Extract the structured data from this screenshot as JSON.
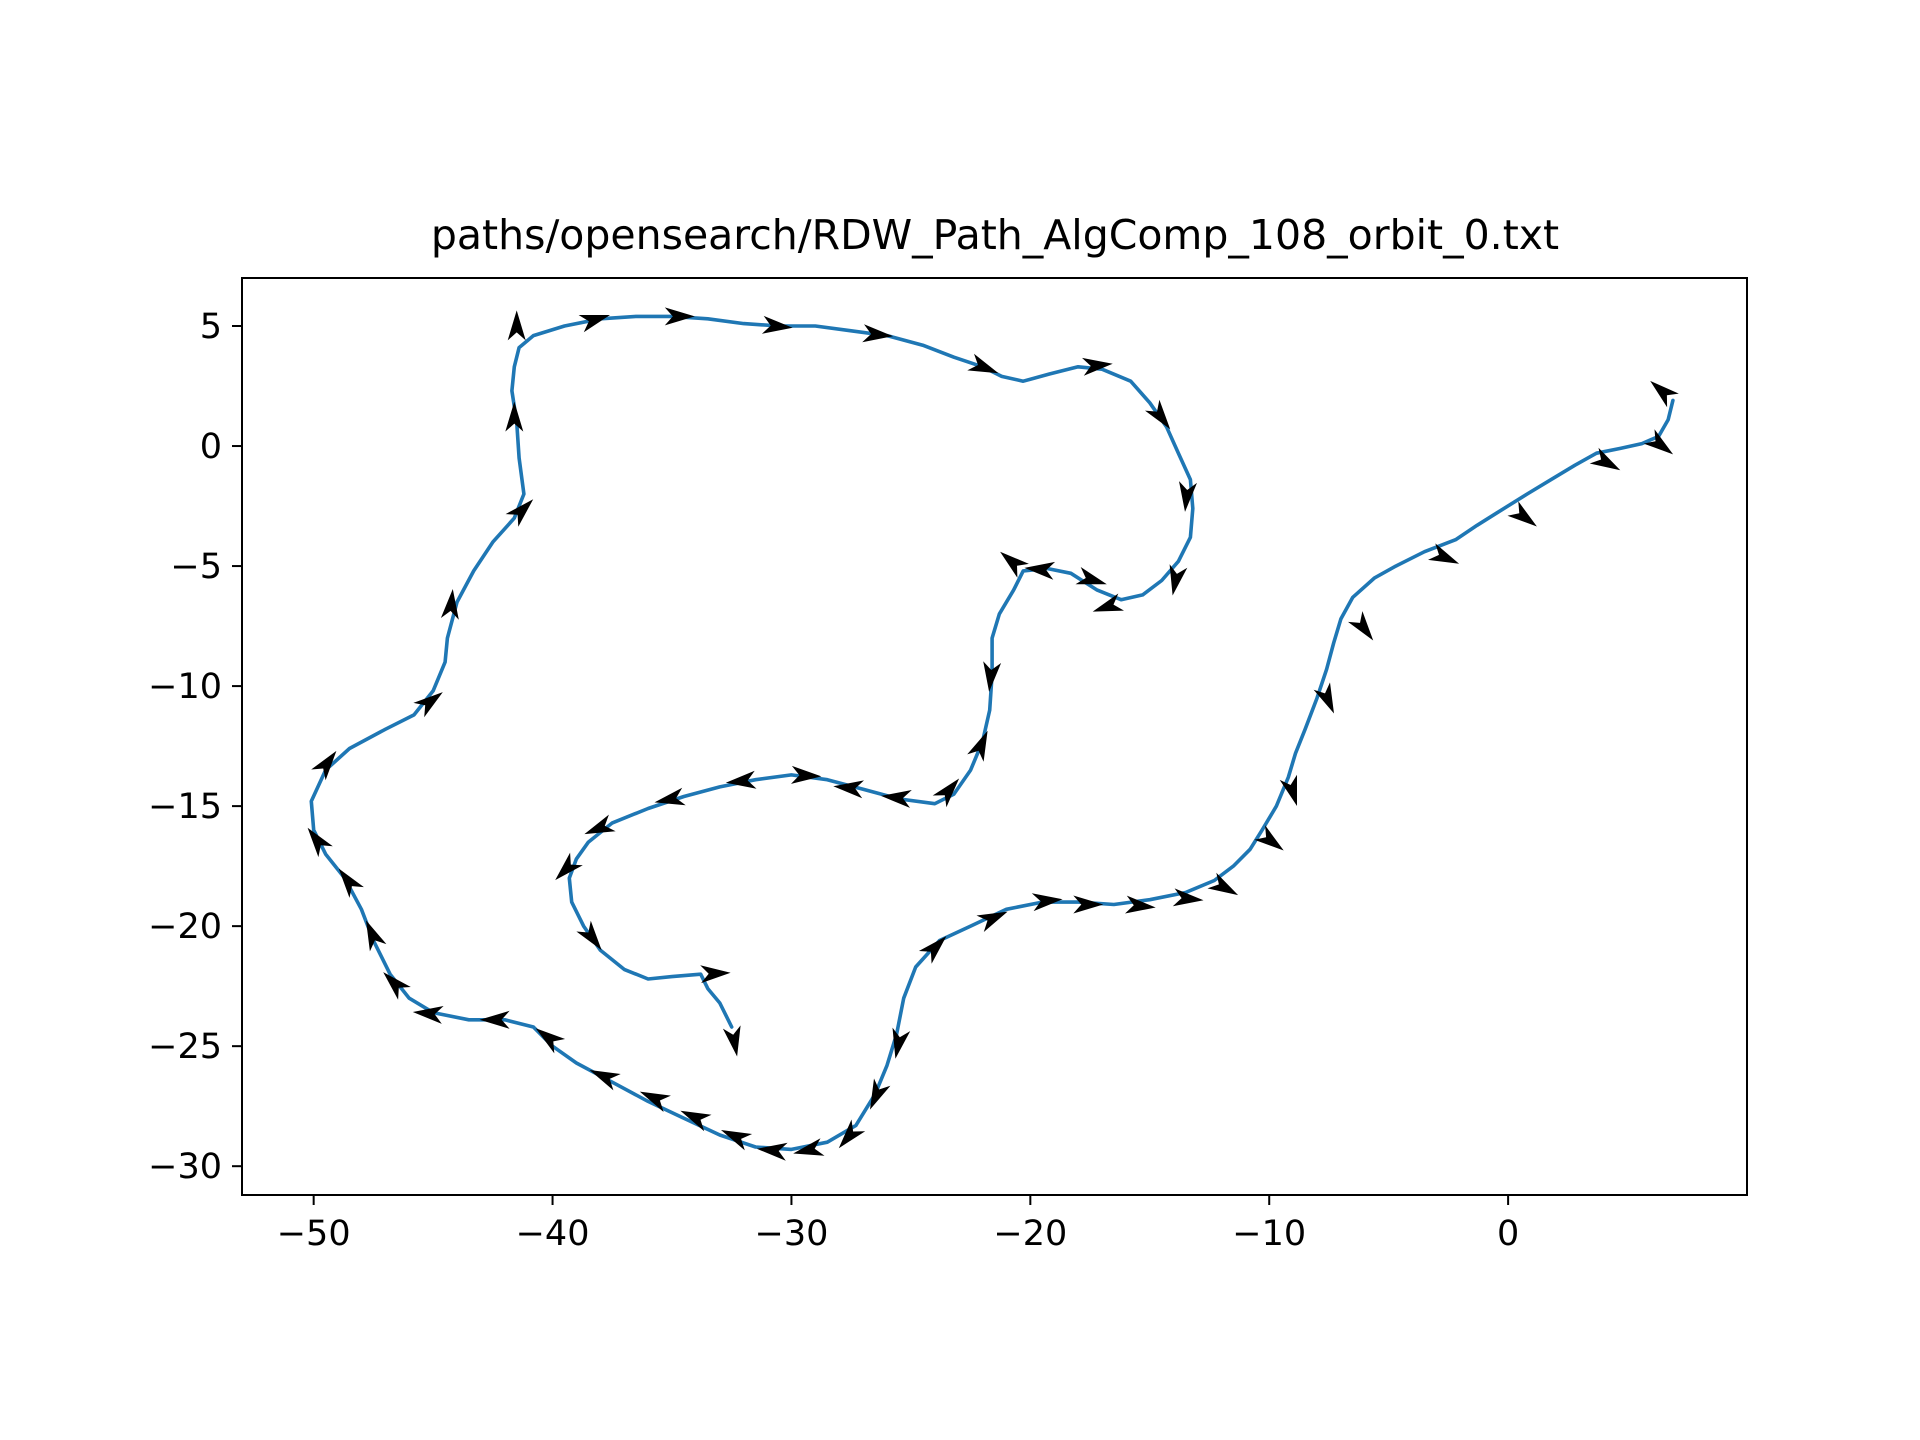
{
  "chart_data": {
    "type": "line",
    "title": "paths/opensearch/RDW_Path_AlgComp_108_orbit_0.txt",
    "xlabel": "",
    "ylabel": "",
    "xlim": [
      -53,
      10
    ],
    "ylim": [
      -31.2,
      7.0
    ],
    "xticks": [
      -50,
      -40,
      -30,
      -20,
      -10,
      0
    ],
    "yticks": [
      5,
      0,
      -5,
      -10,
      -15,
      -20,
      -25,
      -30
    ],
    "xtick_labels": [
      "−50",
      "−40",
      "−30",
      "−20",
      "−10",
      "0"
    ],
    "ytick_labels": [
      "5",
      "0",
      "−5",
      "−10",
      "−15",
      "−20",
      "−25",
      "−30"
    ],
    "grid": false,
    "colors": {
      "line": "#1f77b4",
      "arrow": "#000000"
    },
    "series": [
      {
        "points": [
          [
            -32.5,
            -24.2
          ],
          [
            -33,
            -23.2
          ],
          [
            -33.5,
            -22.6
          ],
          [
            -33.8,
            -22.0
          ],
          [
            -35,
            -22.1
          ],
          [
            -36,
            -22.2
          ],
          [
            -37,
            -21.8
          ],
          [
            -38,
            -21.0
          ],
          [
            -38.7,
            -20.0
          ],
          [
            -39.2,
            -19.0
          ],
          [
            -39.3,
            -18.0
          ],
          [
            -39.0,
            -17.2
          ],
          [
            -38.5,
            -16.5
          ],
          [
            -37.5,
            -15.7
          ],
          [
            -36,
            -15.1
          ],
          [
            -34.5,
            -14.6
          ],
          [
            -33,
            -14.2
          ],
          [
            -31.5,
            -13.9
          ],
          [
            -30,
            -13.7
          ],
          [
            -28.5,
            -13.9
          ],
          [
            -27,
            -14.3
          ],
          [
            -25.5,
            -14.7
          ],
          [
            -24,
            -14.9
          ],
          [
            -23.2,
            -14.5
          ],
          [
            -22.5,
            -13.5
          ],
          [
            -22.0,
            -12.3
          ],
          [
            -21.7,
            -11.0
          ],
          [
            -21.6,
            -9.5
          ],
          [
            -21.6,
            -8.0
          ],
          [
            -21.3,
            -7.0
          ],
          [
            -20.7,
            -6.0
          ],
          [
            -20.3,
            -5.2
          ],
          [
            -19.3,
            -5.1
          ],
          [
            -18.3,
            -5.3
          ],
          [
            -17.2,
            -6.0
          ],
          [
            -16.2,
            -6.4
          ],
          [
            -15.3,
            -6.2
          ],
          [
            -14.5,
            -5.6
          ],
          [
            -13.8,
            -4.8
          ],
          [
            -13.3,
            -3.8
          ],
          [
            -13.2,
            -2.6
          ],
          [
            -13.3,
            -1.4
          ],
          [
            -13.8,
            -0.3
          ],
          [
            -14.3,
            0.8
          ],
          [
            -15.0,
            1.8
          ],
          [
            -15.8,
            2.7
          ],
          [
            -17,
            3.2
          ],
          [
            -18,
            3.3
          ],
          [
            -19.2,
            3.0
          ],
          [
            -20.3,
            2.7
          ],
          [
            -21.2,
            2.9
          ],
          [
            -22,
            3.3
          ],
          [
            -23.2,
            3.7
          ],
          [
            -24.5,
            4.2
          ],
          [
            -26,
            4.6
          ],
          [
            -27.5,
            4.8
          ],
          [
            -29,
            5.0
          ],
          [
            -30.5,
            5.0
          ],
          [
            -32,
            5.1
          ],
          [
            -33.5,
            5.3
          ],
          [
            -35,
            5.4
          ],
          [
            -36.5,
            5.4
          ],
          [
            -38,
            5.3
          ],
          [
            -39.5,
            5.0
          ],
          [
            -40.8,
            4.6
          ],
          [
            -41.4,
            4.1
          ],
          [
            -41.6,
            3.3
          ],
          [
            -41.7,
            2.3
          ],
          [
            -41.5,
            1.0
          ],
          [
            -41.4,
            -0.5
          ],
          [
            -41.2,
            -2.0
          ],
          [
            -41.6,
            -3.0
          ],
          [
            -42.5,
            -4.0
          ],
          [
            -43.3,
            -5.2
          ],
          [
            -44.0,
            -6.5
          ],
          [
            -44.4,
            -8.0
          ],
          [
            -44.5,
            -9.0
          ],
          [
            -45,
            -10.2
          ],
          [
            -45.8,
            -11.2
          ],
          [
            -47,
            -11.8
          ],
          [
            -48.5,
            -12.6
          ],
          [
            -49.5,
            -13.5
          ],
          [
            -50.1,
            -14.8
          ],
          [
            -50.0,
            -16.0
          ],
          [
            -49.5,
            -17.0
          ],
          [
            -48.7,
            -18.0
          ],
          [
            -48,
            -19.3
          ],
          [
            -47.5,
            -20.6
          ],
          [
            -46.8,
            -22.0
          ],
          [
            -46,
            -23
          ],
          [
            -45,
            -23.6
          ],
          [
            -43.5,
            -23.9
          ],
          [
            -42,
            -23.9
          ],
          [
            -40.8,
            -24.2
          ],
          [
            -40,
            -25.0
          ],
          [
            -39,
            -25.7
          ],
          [
            -37.5,
            -26.5
          ],
          [
            -36,
            -27.3
          ],
          [
            -34.5,
            -28.0
          ],
          [
            -33,
            -28.7
          ],
          [
            -31.5,
            -29.2
          ],
          [
            -30,
            -29.3
          ],
          [
            -28.5,
            -29.0
          ],
          [
            -27.3,
            -28.3
          ],
          [
            -26.5,
            -27.0
          ],
          [
            -26.0,
            -25.8
          ],
          [
            -25.6,
            -24.5
          ],
          [
            -25.3,
            -23.0
          ],
          [
            -24.8,
            -21.7
          ],
          [
            -23.8,
            -20.6
          ],
          [
            -22.5,
            -20.0
          ],
          [
            -21.0,
            -19.3
          ],
          [
            -19.5,
            -19.0
          ],
          [
            -18,
            -19.0
          ],
          [
            -16.5,
            -19.1
          ],
          [
            -15,
            -18.9
          ],
          [
            -13.5,
            -18.6
          ],
          [
            -12.3,
            -18.1
          ],
          [
            -11.5,
            -17.5
          ],
          [
            -10.8,
            -16.8
          ],
          [
            -10.3,
            -16.0
          ],
          [
            -9.7,
            -15.0
          ],
          [
            -9.2,
            -13.8
          ],
          [
            -8.9,
            -12.8
          ],
          [
            -8.5,
            -11.8
          ],
          [
            -8.0,
            -10.5
          ],
          [
            -7.6,
            -9.3
          ],
          [
            -7.3,
            -8.2
          ],
          [
            -7.0,
            -7.2
          ],
          [
            -6.5,
            -6.3
          ],
          [
            -5.6,
            -5.5
          ],
          [
            -4.7,
            -5.0
          ],
          [
            -3.5,
            -4.4
          ],
          [
            -2.2,
            -3.9
          ],
          [
            -1.3,
            -3.3
          ],
          [
            -0.5,
            -2.8
          ],
          [
            0.8,
            -2.0
          ],
          [
            1.8,
            -1.4
          ],
          [
            2.8,
            -0.8
          ],
          [
            3.7,
            -0.3
          ],
          [
            4.7,
            -0.1
          ],
          [
            5.6,
            0.1
          ],
          [
            6.3,
            0.4
          ],
          [
            6.7,
            1.1
          ],
          [
            6.9,
            1.9
          ]
        ]
      }
    ],
    "arrows": [
      {
        "x": -32.5,
        "y": -24.2,
        "dx": 0.2,
        "dy": -1.1
      },
      {
        "x": -33.8,
        "y": -22.0,
        "dx": 1.0,
        "dy": 0.05
      },
      {
        "x": -38.7,
        "y": -20.0,
        "dx": 0.6,
        "dy": -0.8
      },
      {
        "x": -39.0,
        "y": -17.2,
        "dx": -0.7,
        "dy": -0.7
      },
      {
        "x": -37.5,
        "y": -15.7,
        "dx": -1.0,
        "dy": -0.4
      },
      {
        "x": -34.5,
        "y": -14.6,
        "dx": -1.0,
        "dy": -0.2
      },
      {
        "x": -31.5,
        "y": -13.9,
        "dx": -1.0,
        "dy": -0.1
      },
      {
        "x": -30,
        "y": -13.7,
        "dx": 1.0,
        "dy": -0.05
      },
      {
        "x": -27,
        "y": -14.3,
        "dx": -1.0,
        "dy": 0.1
      },
      {
        "x": -25,
        "y": -14.7,
        "dx": -1.0,
        "dy": 0.1
      },
      {
        "x": -23.8,
        "y": -14.8,
        "dx": 0.6,
        "dy": 0.7
      },
      {
        "x": -22.3,
        "y": -13.0,
        "dx": 0.4,
        "dy": 0.9
      },
      {
        "x": -21.6,
        "y": -9.0,
        "dx": -0.1,
        "dy": -1.0
      },
      {
        "x": -20.3,
        "y": -5.2,
        "dx": -0.6,
        "dy": 0.5
      },
      {
        "x": -19.0,
        "y": -5.2,
        "dx": -1.0,
        "dy": 0.1
      },
      {
        "x": -18.0,
        "y": -5.4,
        "dx": 1.0,
        "dy": -0.3
      },
      {
        "x": -16.2,
        "y": -6.5,
        "dx": -0.9,
        "dy": -0.3
      },
      {
        "x": -13.8,
        "y": -5.0,
        "dx": -0.2,
        "dy": -1.0
      },
      {
        "x": -13.4,
        "y": -1.5,
        "dx": -0.1,
        "dy": -1.0
      },
      {
        "x": -14.9,
        "y": 1.7,
        "dx": 0.6,
        "dy": -0.8
      },
      {
        "x": -17.8,
        "y": 3.3,
        "dx": 1.0,
        "dy": 0.1
      },
      {
        "x": -22.5,
        "y": 3.5,
        "dx": 1.0,
        "dy": -0.4
      },
      {
        "x": -27,
        "y": 4.7,
        "dx": 1.0,
        "dy": -0.1
      },
      {
        "x": -31.2,
        "y": 5.05,
        "dx": 1.0,
        "dy": -0.1
      },
      {
        "x": -35.3,
        "y": 5.4,
        "dx": 1.0,
        "dy": 0.0
      },
      {
        "x": -38.8,
        "y": 5.1,
        "dx": 1.0,
        "dy": 0.3
      },
      {
        "x": -41.5,
        "y": 4.4,
        "dx": 0.0,
        "dy": 1.0
      },
      {
        "x": -41.6,
        "y": 0.6,
        "dx": 0.0,
        "dy": 1.0
      },
      {
        "x": -41.7,
        "y": -3.1,
        "dx": 0.7,
        "dy": 0.7
      },
      {
        "x": -44.3,
        "y": -7.2,
        "dx": 0.1,
        "dy": 1.0
      },
      {
        "x": -45.6,
        "y": -11.0,
        "dx": 0.8,
        "dy": 0.6
      },
      {
        "x": -49.8,
        "y": -13.7,
        "dx": 0.6,
        "dy": 0.8
      },
      {
        "x": -49.5,
        "y": -16.9,
        "dx": -0.6,
        "dy": 0.8
      },
      {
        "x": -48.2,
        "y": -18.6,
        "dx": -0.6,
        "dy": 0.8
      },
      {
        "x": -47.3,
        "y": -20.9,
        "dx": -0.4,
        "dy": 0.9
      },
      {
        "x": -46.2,
        "y": -22.8,
        "dx": -0.7,
        "dy": 0.7
      },
      {
        "x": -44.6,
        "y": -23.7,
        "dx": -1.0,
        "dy": 0.1
      },
      {
        "x": -41.8,
        "y": -23.9,
        "dx": -1.0,
        "dy": 0.0
      },
      {
        "x": -39.7,
        "y": -25.0,
        "dx": -0.8,
        "dy": 0.6
      },
      {
        "x": -37.3,
        "y": -26.5,
        "dx": -0.9,
        "dy": 0.4
      },
      {
        "x": -35.2,
        "y": -27.4,
        "dx": -0.9,
        "dy": 0.4
      },
      {
        "x": -33.5,
        "y": -28.2,
        "dx": -0.9,
        "dy": 0.4
      },
      {
        "x": -31.8,
        "y": -29.0,
        "dx": -0.9,
        "dy": 0.4
      },
      {
        "x": -30.2,
        "y": -29.4,
        "dx": -1.0,
        "dy": 0.1
      },
      {
        "x": -28.7,
        "y": -29.2,
        "dx": -0.9,
        "dy": -0.2
      },
      {
        "x": -27.2,
        "y": -28.3,
        "dx": -0.6,
        "dy": -0.7
      },
      {
        "x": -26.2,
        "y": -26.5,
        "dx": -0.4,
        "dy": -0.9
      },
      {
        "x": -25.4,
        "y": -24.3,
        "dx": -0.2,
        "dy": -1.0
      },
      {
        "x": -24.4,
        "y": -21.3,
        "dx": 0.7,
        "dy": 0.7
      },
      {
        "x": -22.1,
        "y": -19.9,
        "dx": 0.9,
        "dy": 0.4
      },
      {
        "x": -19.9,
        "y": -19.0,
        "dx": 1.0,
        "dy": 0.1
      },
      {
        "x": -18.2,
        "y": -19.1,
        "dx": 1.0,
        "dy": 0.0
      },
      {
        "x": -16.0,
        "y": -19.1,
        "dx": 1.0,
        "dy": -0.1
      },
      {
        "x": -14.0,
        "y": -18.8,
        "dx": 1.0,
        "dy": -0.1
      },
      {
        "x": -12.4,
        "y": -18.1,
        "dx": 0.9,
        "dy": -0.5
      },
      {
        "x": -10.4,
        "y": -16.1,
        "dx": 0.8,
        "dy": -0.6
      },
      {
        "x": -9.2,
        "y": -13.8,
        "dx": 0.3,
        "dy": -1.0
      },
      {
        "x": -7.8,
        "y": -10.0,
        "dx": 0.4,
        "dy": -0.9
      },
      {
        "x": -6.4,
        "y": -7.1,
        "dx": 0.6,
        "dy": -0.8
      },
      {
        "x": -3.2,
        "y": -4.4,
        "dx": 0.9,
        "dy": -0.4
      },
      {
        "x": 0.2,
        "y": -2.6,
        "dx": 0.8,
        "dy": -0.6
      },
      {
        "x": 3.6,
        "y": -0.4,
        "dx": 0.9,
        "dy": -0.5
      },
      {
        "x": 5.9,
        "y": 0.4,
        "dx": 0.8,
        "dy": -0.6
      },
      {
        "x": 6.9,
        "y": 1.9,
        "dx": -0.7,
        "dy": 0.6
      }
    ]
  }
}
